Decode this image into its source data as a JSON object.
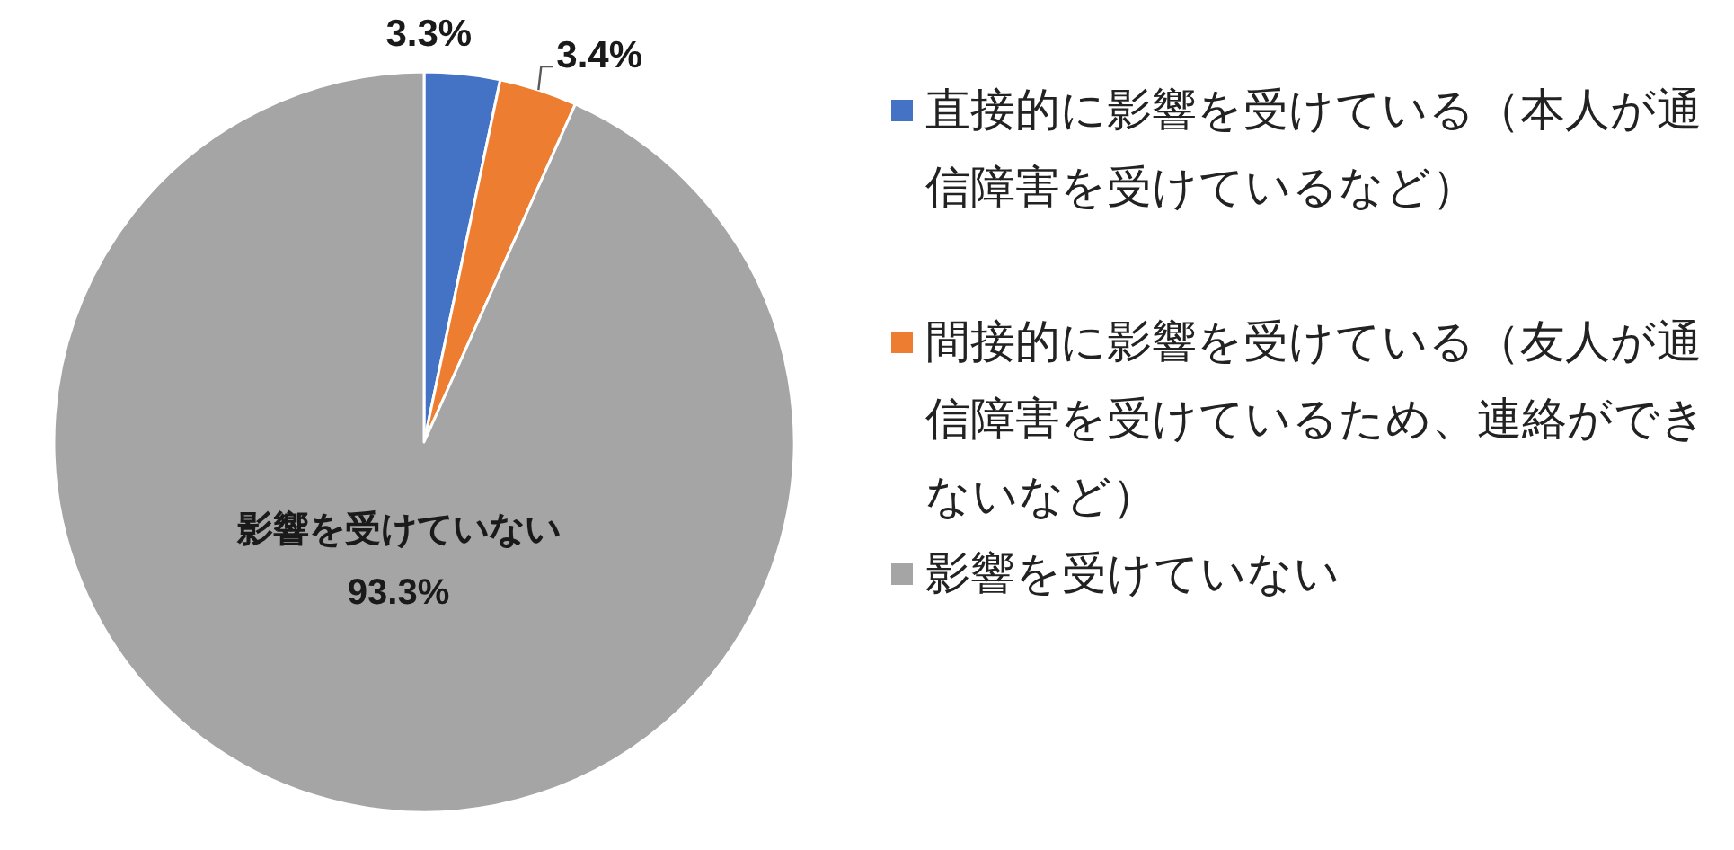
{
  "chart_data": {
    "type": "pie",
    "categories": [
      "直接的に影響を受けている（本人が通信障害を受けているなど）",
      "間接的に影響を受けている（友人が通信障害を受けているため、連絡ができないなど）",
      "影響を受けていない"
    ],
    "values": [
      3.3,
      3.4,
      93.3
    ],
    "colors": [
      "#4472c4",
      "#ed7d31",
      "#a5a5a5"
    ],
    "value_labels": [
      "3.3%",
      "3.4%",
      "影響を受けていない\n93.3%"
    ],
    "legend": "right"
  }
}
